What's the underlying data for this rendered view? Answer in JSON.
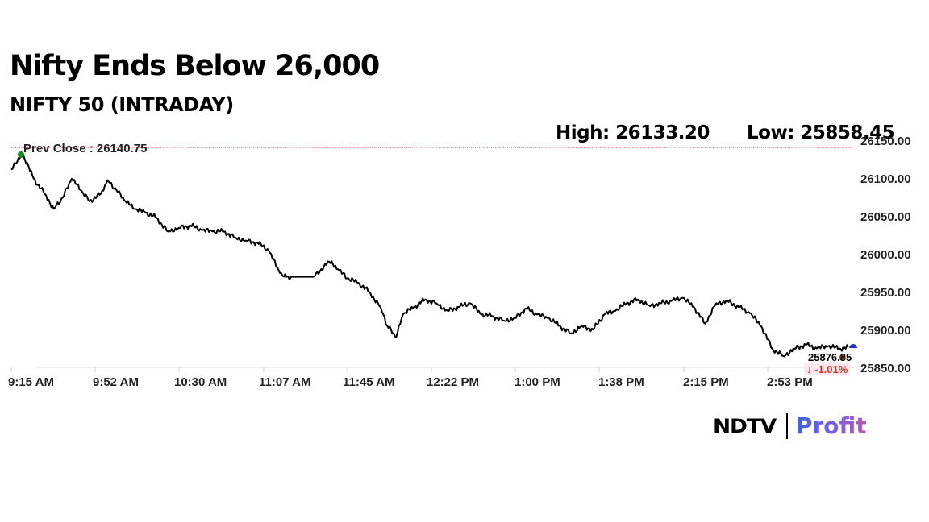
{
  "header": {
    "title": "Nifty Ends Below 26,000",
    "subtitle": "NIFTY 50 (INTRADAY)",
    "high_label": "High: 26133.20",
    "low_label": "Low: 25858.45"
  },
  "reference": {
    "prev_close_label": "Prev Close : 26140.75",
    "prev_close_color": "#d0021b"
  },
  "last": {
    "price": "25876.85",
    "change": "↓ -1.01%"
  },
  "branding": {
    "ndtv": "NDTV",
    "profit": "Profit"
  },
  "colors": {
    "line": "#000000",
    "start_marker": "#1a8a1a",
    "end_marker": "#1f2fcf",
    "last_marker": "#a0521d",
    "grid": "#dddddd"
  },
  "chart_data": {
    "type": "line",
    "title": "Nifty Ends Below 26,000",
    "subtitle": "NIFTY 50 (INTRADAY)",
    "xlabel": "",
    "ylabel": "",
    "ylim": [
      25850,
      26150
    ],
    "y_ticks": [
      "26150.00",
      "26100.00",
      "26050.00",
      "26000.00",
      "25950.00",
      "25900.00",
      "25850.00"
    ],
    "x_ticks": [
      "9:15 AM",
      "9:52 AM",
      "10:30 AM",
      "11:07 AM",
      "11:45 AM",
      "12:22 PM",
      "1:00 PM",
      "1:38 PM",
      "2:15 PM",
      "2:53 PM"
    ],
    "grid": false,
    "legend": "none",
    "reference_line": {
      "label": "Prev Close",
      "value": 26140.75
    },
    "high": 26133.2,
    "low": 25858.45,
    "last_value": 25876.85,
    "change_pct": -1.01,
    "series": [
      {
        "name": "NIFTY 50",
        "x": [
          "9:15",
          "9:17",
          "9:20",
          "9:25",
          "9:30",
          "9:34",
          "9:38",
          "9:42",
          "9:46",
          "9:50",
          "9:55",
          "9:58",
          "10:02",
          "10:06",
          "10:10",
          "10:15",
          "10:20",
          "10:25",
          "10:30",
          "10:35",
          "10:40",
          "10:45",
          "10:50",
          "10:55",
          "11:00",
          "11:05",
          "11:10",
          "11:15",
          "11:18",
          "11:20",
          "11:30",
          "11:37",
          "11:41",
          "11:45",
          "11:50",
          "11:55",
          "12:00",
          "12:03",
          "12:07",
          "12:10",
          "12:15",
          "12:20",
          "12:25",
          "12:30",
          "12:35",
          "12:40",
          "12:45",
          "12:50",
          "12:55",
          "1:00",
          "1:05",
          "1:10",
          "1:15",
          "1:20",
          "1:25",
          "1:30",
          "1:35",
          "1:40",
          "1:45",
          "1:50",
          "1:55",
          "2:00",
          "2:05",
          "2:10",
          "2:15",
          "2:20",
          "2:25",
          "2:30",
          "2:35",
          "2:40",
          "2:45",
          "2:50",
          "2:55",
          "3:00",
          "3:05",
          "3:10",
          "3:15",
          "3:20",
          "3:25",
          "3:29"
        ],
        "values": [
          26112,
          26120,
          26133,
          26100,
          26080,
          26060,
          26075,
          26100,
          26085,
          26070,
          26080,
          26098,
          26085,
          26070,
          26060,
          26055,
          26048,
          26030,
          26035,
          26038,
          26032,
          26030,
          26030,
          26022,
          26018,
          26015,
          26005,
          25975,
          25970,
          25970,
          25970,
          25990,
          25980,
          25968,
          25962,
          25950,
          25930,
          25905,
          25890,
          25920,
          25930,
          25940,
          25935,
          25925,
          25930,
          25935,
          25920,
          25918,
          25912,
          25915,
          25928,
          25920,
          25915,
          25905,
          25895,
          25905,
          25900,
          25920,
          25925,
          25935,
          25940,
          25932,
          25935,
          25938,
          25942,
          25930,
          25908,
          25935,
          25938,
          25930,
          25922,
          25905,
          25875,
          25865,
          25875,
          25880,
          25875,
          25878,
          25875,
          25877
        ]
      }
    ]
  }
}
